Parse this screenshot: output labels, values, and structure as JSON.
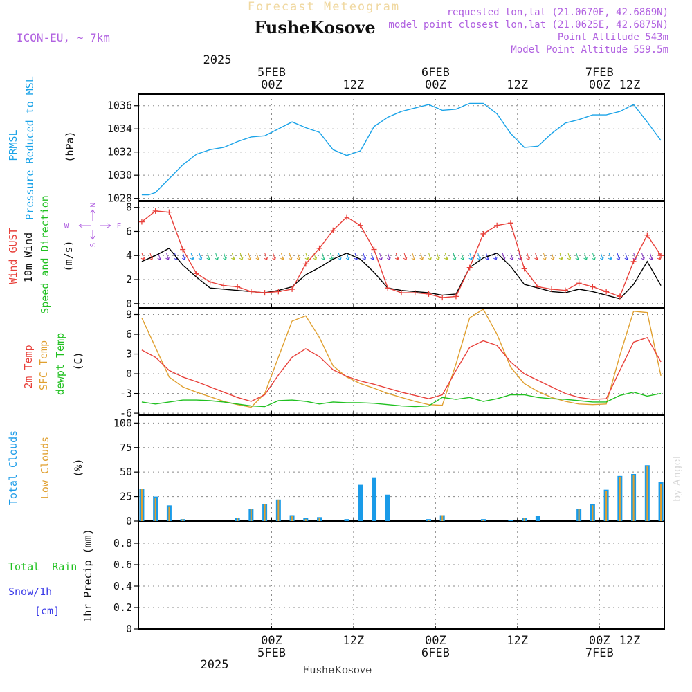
{
  "header": {
    "product_title": "Forecast Meteogram",
    "location": "FusheKosove",
    "model": "ICON-EU, ~ 7km",
    "requested": "requested lon,lat (21.0670E, 42.6869N)",
    "model_point": "model point closest lon,lat (21.0625E, 42.6875N)",
    "point_altitude": "Point Altitude 543m",
    "model_altitude": "Model Point Altitude 559.5m"
  },
  "time_axis": {
    "top_year": "2025",
    "dates": [
      "5FEB",
      "6FEB",
      "7FEB"
    ],
    "hours": [
      "00Z",
      "12Z",
      "00Z",
      "12Z",
      "00Z",
      "12Z"
    ],
    "bottom_hours": [
      "00Z",
      "12Z",
      "00Z",
      "12Z",
      "00Z",
      "12Z"
    ],
    "bottom_dates": [
      "5FEB",
      "6FEB",
      "7FEB"
    ],
    "bottom_year": "2025",
    "footer_location": "FusheKosove",
    "range_hours": [
      -19.5,
      57.5
    ]
  },
  "watermark": "by Angel",
  "panels": {
    "pressure": {
      "label_short": "PRMSL",
      "label_long": "Pressure Reduced to MSL",
      "unit": "(hPa)",
      "ticks": [
        "1036",
        "1034",
        "1032",
        "1030",
        "1028"
      ],
      "color": "#1aa3e8"
    },
    "wind": {
      "gust_label": "Wind GUST",
      "wind_label": "10m Wind",
      "speed_label": "Speed and Direction",
      "unit": "(m/s)",
      "ticks": [
        "8",
        "6",
        "4",
        "2",
        "0"
      ],
      "compass_w": "W",
      "compass_e": "E",
      "compass_n": "N",
      "compass_s": "S",
      "gust_color": "#e8403a",
      "wind_color": "#000000"
    },
    "temperature": {
      "t2m_label": "2m Temp",
      "sfc_label": "SFC Temp",
      "dew_label": "dewpt Temp",
      "unit": "(C)",
      "ticks": [
        "9",
        "6",
        "3",
        "0",
        "-3",
        "-6"
      ],
      "t2m_color": "#e8403a",
      "sfc_color": "#e0a030",
      "dew_color": "#20c020"
    },
    "clouds": {
      "total_label": "Total Clouds",
      "low_label": "Low Clouds",
      "unit": "(%)",
      "ticks": [
        "100",
        "75",
        "50",
        "25",
        "0"
      ],
      "total_color": "#1a9be8",
      "low_color": "#e0a030"
    },
    "precip": {
      "rain_label": "Total  Rain",
      "snow_label": "Snow/1h",
      "snow_unit": "[cm]",
      "axis_label": "1hr Precip (mm)",
      "ticks": [
        "0.8",
        "0.6",
        "0.4",
        "0.2",
        "0"
      ],
      "rain_color": "#20c020",
      "snow_color": "#3a3ae8"
    }
  },
  "chart_data": [
    {
      "type": "line",
      "title": "PRMSL Pressure Reduced to MSL",
      "ylabel": "(hPa)",
      "ylim": [
        1027.8,
        1037
      ],
      "x_hours": [
        -19,
        -18,
        -17,
        -15,
        -13,
        -11,
        -9,
        -7,
        -5,
        -3,
        -1,
        1,
        3,
        5,
        7,
        9,
        11,
        13,
        15,
        17,
        19,
        21,
        23,
        25,
        27,
        29,
        31,
        33,
        35,
        37,
        39,
        41,
        43,
        45,
        47,
        49,
        51,
        53,
        55,
        57
      ],
      "series": [
        {
          "name": "PRMSL",
          "values": [
            1028.3,
            1028.3,
            1028.5,
            1029.7,
            1030.9,
            1031.8,
            1032.2,
            1032.4,
            1032.9,
            1033.3,
            1033.4,
            1034.0,
            1034.6,
            1034.1,
            1033.7,
            1032.2,
            1031.7,
            1032.1,
            1034.2,
            1035.0,
            1035.5,
            1035.8,
            1036.1,
            1035.6,
            1035.7,
            1036.2,
            1036.2,
            1035.3,
            1033.6,
            1032.4,
            1032.5,
            1033.6,
            1034.5,
            1034.8,
            1035.2,
            1035.2,
            1035.5,
            1036.1,
            1034.6,
            1033.0
          ]
        }
      ]
    },
    {
      "type": "line",
      "title": "Wind GUST / 10m Wind Speed and Direction",
      "ylabel": "(m/s)",
      "ylim": [
        -0.3,
        8.5
      ],
      "x_hours": [
        -19,
        -17,
        -15,
        -13,
        -11,
        -9,
        -7,
        -5,
        -3,
        -1,
        1,
        3,
        5,
        7,
        9,
        11,
        13,
        15,
        17,
        19,
        21,
        23,
        25,
        27,
        29,
        31,
        33,
        35,
        37,
        39,
        41,
        43,
        45,
        47,
        49,
        51,
        53,
        55,
        57
      ],
      "series": [
        {
          "name": "Wind GUST",
          "values": [
            6.8,
            7.7,
            7.6,
            4.5,
            2.5,
            1.8,
            1.5,
            1.4,
            1.0,
            0.9,
            1.0,
            1.2,
            3.3,
            4.6,
            6.1,
            7.2,
            6.5,
            4.5,
            1.3,
            0.9,
            0.9,
            0.8,
            0.5,
            0.6,
            3.0,
            5.8,
            6.5,
            6.7,
            2.9,
            1.4,
            1.2,
            1.1,
            1.7,
            1.4,
            1.0,
            0.6,
            3.5,
            5.7,
            4.0
          ]
        },
        {
          "name": "10m Wind",
          "values": [
            3.5,
            4.0,
            4.6,
            3.2,
            2.2,
            1.3,
            1.2,
            1.1,
            1.0,
            0.9,
            1.1,
            1.4,
            2.4,
            3.0,
            3.7,
            4.2,
            3.7,
            2.6,
            1.3,
            1.1,
            1.0,
            0.9,
            0.7,
            0.8,
            3.0,
            3.8,
            4.2,
            3.1,
            1.6,
            1.3,
            1.0,
            0.9,
            1.2,
            1.0,
            0.7,
            0.4,
            1.6,
            3.5,
            1.5
          ]
        }
      ]
    },
    {
      "type": "line",
      "title": "2m Temp / SFC Temp / dewpt Temp",
      "ylabel": "(C)",
      "ylim": [
        -6.2,
        10
      ],
      "x_hours": [
        -19,
        -17,
        -15,
        -13,
        -11,
        -9,
        -7,
        -5,
        -3,
        -1,
        1,
        3,
        5,
        7,
        9,
        11,
        13,
        15,
        17,
        19,
        21,
        23,
        25,
        27,
        29,
        31,
        33,
        35,
        37,
        39,
        41,
        43,
        45,
        47,
        49,
        51,
        53,
        55,
        57
      ],
      "series": [
        {
          "name": "2m Temp",
          "values": [
            3.6,
            2.5,
            0.5,
            -0.5,
            -1.2,
            -2.0,
            -2.8,
            -3.6,
            -4.2,
            -3.2,
            -0.2,
            2.5,
            3.8,
            2.6,
            0.6,
            -0.4,
            -1.1,
            -1.6,
            -2.2,
            -2.8,
            -3.3,
            -3.8,
            -3.2,
            0.5,
            4.0,
            5.0,
            4.3,
            1.8,
            0.0,
            -1.0,
            -2.0,
            -3.0,
            -3.6,
            -3.9,
            -3.8,
            0.5,
            4.8,
            5.5,
            1.8
          ]
        },
        {
          "name": "SFC Temp",
          "values": [
            8.5,
            4.0,
            -0.5,
            -2.0,
            -2.8,
            -3.5,
            -4.2,
            -4.7,
            -5.1,
            -3.0,
            2.5,
            8.0,
            8.8,
            5.5,
            1.2,
            -0.5,
            -1.5,
            -2.2,
            -3.0,
            -3.6,
            -4.2,
            -4.7,
            -4.8,
            1.5,
            8.5,
            9.8,
            6.0,
            1.0,
            -1.5,
            -2.7,
            -3.6,
            -4.2,
            -4.6,
            -4.7,
            -4.6,
            2.8,
            9.5,
            9.3,
            -0.3
          ]
        },
        {
          "name": "dewpt Temp",
          "values": [
            -4.3,
            -4.6,
            -4.3,
            -4.0,
            -4.0,
            -4.1,
            -4.3,
            -4.6,
            -4.9,
            -5.0,
            -4.1,
            -4.0,
            -4.2,
            -4.6,
            -4.3,
            -4.4,
            -4.4,
            -4.5,
            -4.7,
            -4.9,
            -5.0,
            -4.9,
            -3.6,
            -3.9,
            -3.6,
            -4.2,
            -3.8,
            -3.2,
            -3.2,
            -3.6,
            -3.8,
            -3.9,
            -4.1,
            -4.3,
            -4.3,
            -3.3,
            -2.8,
            -3.4,
            -3.0
          ]
        }
      ]
    },
    {
      "type": "bar",
      "title": "Total Clouds / Low Clouds",
      "ylabel": "(%)",
      "ylim": [
        0,
        108
      ],
      "x_hours": [
        -19,
        -17,
        -15,
        -13,
        -11,
        -9,
        -7,
        -5,
        -3,
        -1,
        1,
        3,
        5,
        7,
        9,
        11,
        13,
        15,
        17,
        19,
        21,
        23,
        25,
        27,
        29,
        31,
        33,
        35,
        37,
        39,
        41,
        43,
        45,
        47,
        49,
        51,
        53,
        55,
        57
      ],
      "series": [
        {
          "name": "Total Clouds",
          "values": [
            33,
            25,
            16,
            2,
            0,
            0,
            0,
            3,
            12,
            17,
            22,
            6,
            3,
            4,
            0,
            2,
            37,
            44,
            27,
            0,
            0,
            2,
            6,
            0,
            0,
            2,
            0,
            1,
            3,
            5,
            0,
            0,
            12,
            17,
            32,
            46,
            48,
            57,
            40
          ]
        },
        {
          "name": "Low Clouds",
          "values": [
            33,
            24,
            15,
            2,
            0,
            0,
            0,
            3,
            12,
            17,
            22,
            5,
            2,
            3,
            0,
            0,
            0,
            0,
            0,
            0,
            0,
            1,
            6,
            0,
            0,
            1,
            0,
            0,
            3,
            0,
            0,
            0,
            12,
            16,
            31,
            45,
            47,
            56,
            38
          ]
        }
      ]
    },
    {
      "type": "bar",
      "title": "1hr Precip (mm)",
      "ylabel": "1hr Precip (mm)",
      "ylim": [
        0,
        1.0
      ],
      "x_hours": [
        -19,
        57
      ],
      "series": [
        {
          "name": "Total Rain",
          "values": [
            0,
            0
          ]
        },
        {
          "name": "Snow/1h",
          "values": [
            0,
            0
          ]
        }
      ]
    }
  ]
}
